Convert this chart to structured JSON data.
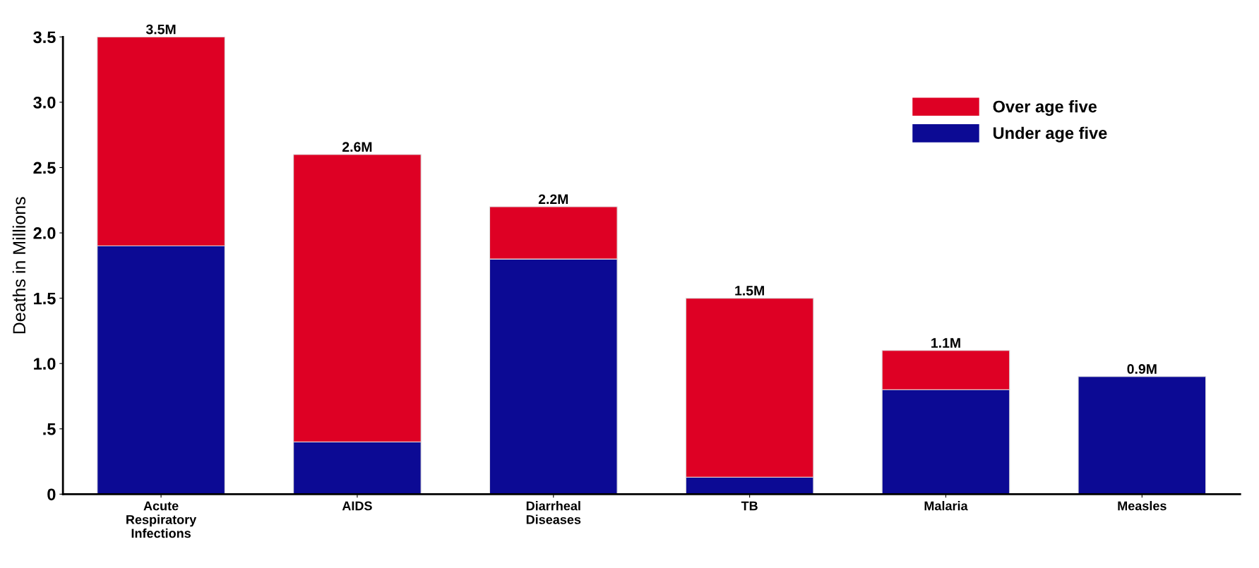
{
  "chart_data": {
    "type": "bar",
    "stacked": true,
    "ylabel": "Deaths in Millions",
    "categories": [
      "Acute\nRespiratory\nInfections",
      "AIDS",
      "Diarrheal\nDiseases",
      "TB",
      "Malaria",
      "Measles"
    ],
    "series": [
      {
        "name": "Under age five",
        "color": "#0c0a94",
        "values": [
          1.9,
          0.4,
          1.8,
          0.13,
          0.8,
          0.9
        ]
      },
      {
        "name": "Over age five",
        "color": "#de0024",
        "values": [
          1.6,
          2.2,
          0.4,
          1.37,
          0.3,
          0
        ]
      }
    ],
    "totals": [
      "3.5M",
      "2.6M",
      "2.2M",
      "1.5M",
      "1.1M",
      "0.9M"
    ],
    "ylim": [
      0,
      3.5
    ],
    "yticks": [
      0,
      {
        "value": 0.5,
        "label": ".5"
      },
      {
        "value": 1,
        "label": "1.0"
      },
      {
        "value": 1.5,
        "label": "1.5"
      },
      {
        "value": 2,
        "label": "2.0"
      },
      {
        "value": 2.5,
        "label": "2.5"
      },
      {
        "value": 3,
        "label": "3.0"
      },
      {
        "value": 3.5,
        "label": "3.5"
      }
    ],
    "grid": false,
    "legend": "top right"
  }
}
